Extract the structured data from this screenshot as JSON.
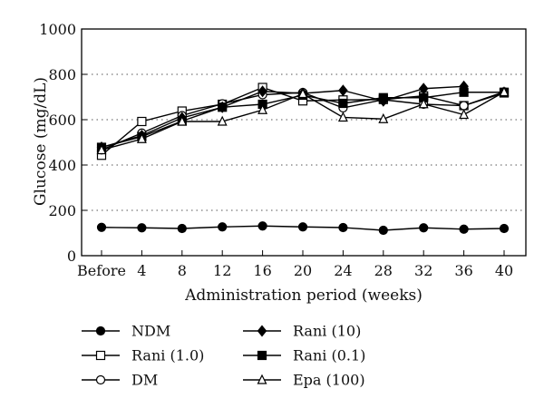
{
  "chart_data": {
    "type": "line",
    "title": "",
    "xlabel": "Administration period (weeks)",
    "ylabel": "Glucose (mg/dL)",
    "categories": [
      "Before",
      "4",
      "8",
      "12",
      "16",
      "20",
      "24",
      "28",
      "32",
      "36",
      "40"
    ],
    "ylim": [
      0,
      1000
    ],
    "yticks": [
      0,
      200,
      400,
      600,
      800,
      1000
    ],
    "grid": "horizontal-dotted",
    "legend_position": "bottom",
    "series": [
      {
        "name": "NDM",
        "marker": "circle-filled",
        "values": [
          125,
          123,
          120,
          127,
          131,
          127,
          124,
          112,
          123,
          117,
          120
        ]
      },
      {
        "name": "Rani (1.0)",
        "marker": "square-open",
        "values": [
          443,
          592,
          638,
          668,
          742,
          683,
          687,
          689,
          705,
          662,
          718
        ]
      },
      {
        "name": "DM",
        "marker": "circle-open",
        "values": [
          467,
          541,
          618,
          670,
          710,
          720,
          652,
          688,
          668,
          662,
          723
        ]
      },
      {
        "name": "Rani (10)",
        "marker": "diamond-filled",
        "values": [
          478,
          530,
          608,
          655,
          725,
          716,
          729,
          683,
          737,
          747,
          null
        ]
      },
      {
        "name": "Rani (0.1)",
        "marker": "square-filled",
        "values": [
          478,
          525,
          594,
          655,
          668,
          708,
          672,
          697,
          697,
          721,
          721
        ]
      },
      {
        "name": "Epa (100)",
        "marker": "triangle-open",
        "values": [
          466,
          515,
          592,
          592,
          643,
          714,
          610,
          603,
          669,
          622,
          722
        ]
      }
    ]
  }
}
